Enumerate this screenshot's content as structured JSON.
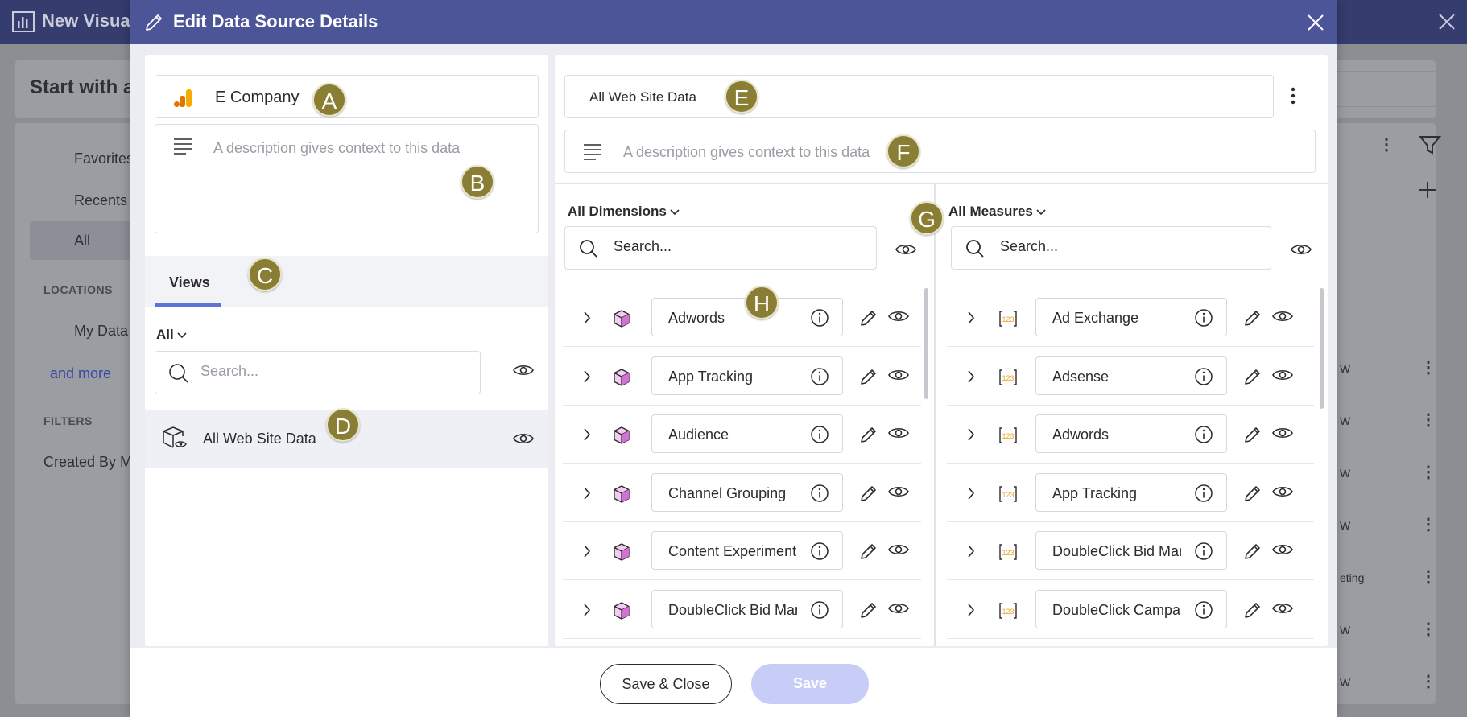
{
  "background": {
    "app_title": "New Visua",
    "heading": "Start with a",
    "sidebar": [
      "Favorites",
      "Recents",
      "All"
    ],
    "locations_label": "LOCATIONS",
    "my_data": "My Data",
    "and_more": "and more",
    "filters_label": "FILTERS",
    "created_by": "Created By Me",
    "list_items": [
      "W",
      "W",
      "W",
      "W",
      "eting",
      "W",
      "W"
    ]
  },
  "modal": {
    "title": "Edit Data Source Details",
    "left": {
      "name": "E Company",
      "description_placeholder": "A description gives context to this data",
      "tab_label": "Views",
      "filter_dropdown": "All",
      "search_placeholder": "Search...",
      "views": [
        {
          "label": "All Web Site Data"
        }
      ]
    },
    "right": {
      "view_name": "All Web Site Data",
      "description_placeholder": "A description gives context to this data",
      "dimensions": {
        "dropdown_label": "All Dimensions",
        "search_placeholder": "Search...",
        "items": [
          "Adwords",
          "App Tracking",
          "Audience",
          "Channel Grouping",
          "Content Experiment",
          "DoubleClick Bid Manager"
        ]
      },
      "measures": {
        "dropdown_label": "All Measures",
        "search_placeholder": "Search...",
        "items": [
          "Ad Exchange",
          "Adsense",
          "Adwords",
          "App Tracking",
          "DoubleClick Bid Manager",
          "DoubleClick Campaign Manager"
        ]
      }
    },
    "footer": {
      "save_close_label": "Save & Close",
      "save_label": "Save"
    }
  },
  "callouts": [
    "A",
    "B",
    "C",
    "D",
    "E",
    "F",
    "G",
    "H"
  ],
  "colors": {
    "header_bg": "#4d5599",
    "accent": "#6172d6",
    "callout": "#8a7e34",
    "dimension_icon": "#d66fd6",
    "measure_icon": "#e8a22a"
  }
}
